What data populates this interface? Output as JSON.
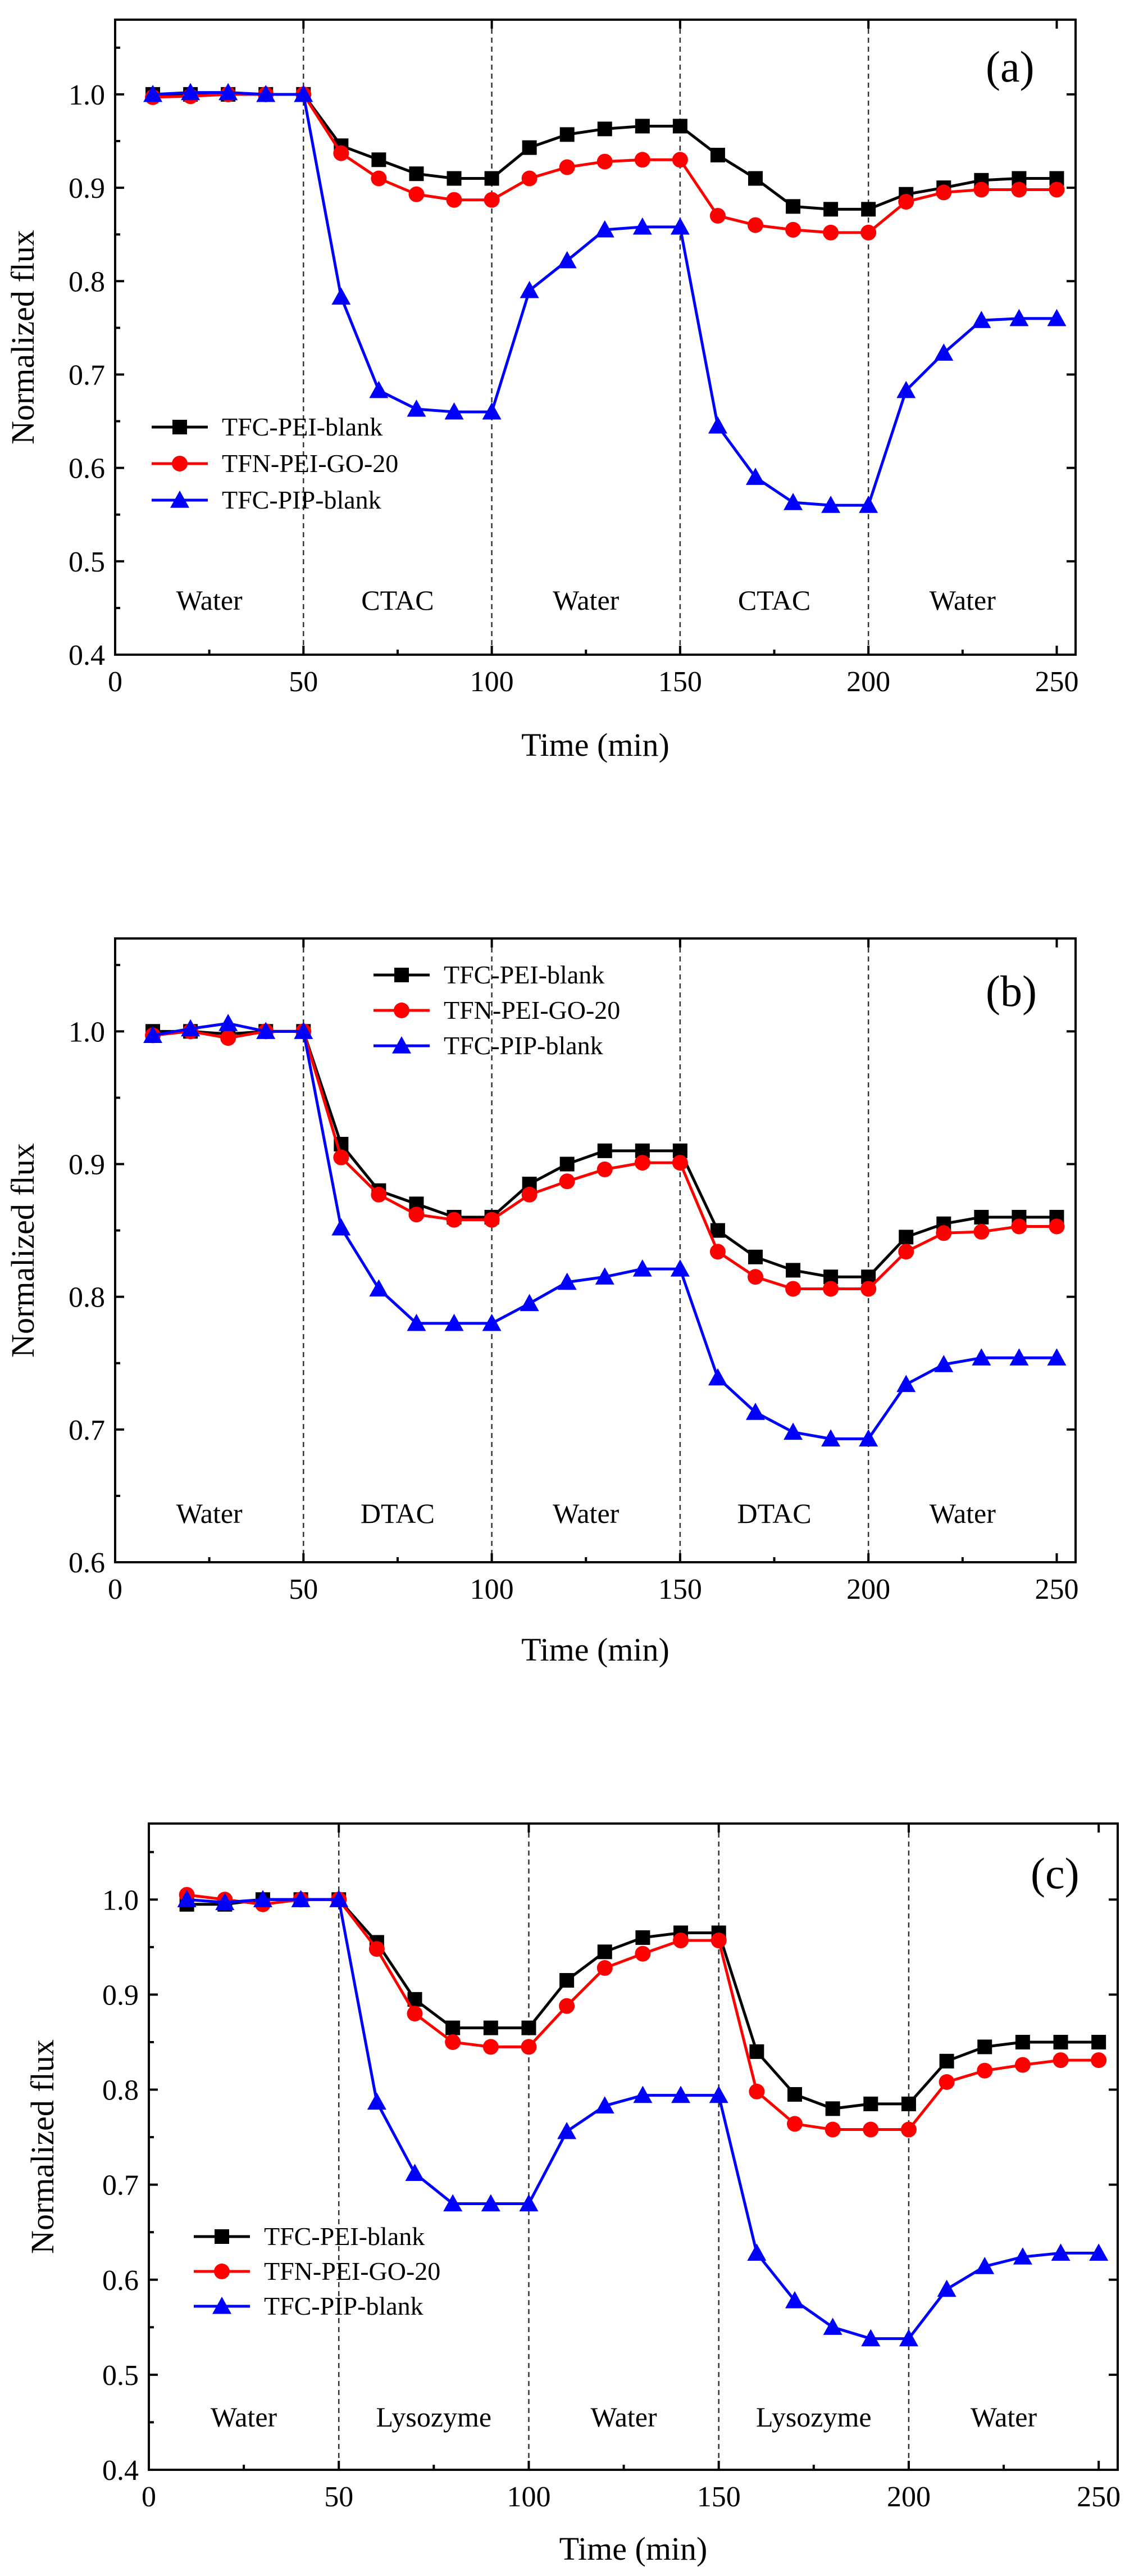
{
  "figure": {
    "colors": {
      "TFC-PEI-blank": "#000000",
      "TFN-PEI-GO-20": "#ff0000",
      "TFC-PIP-blank": "#0000ff"
    },
    "marker_shapes": {
      "TFC-PEI-blank": "square",
      "TFN-PEI-GO-20": "circle",
      "TFC-PIP-blank": "triangle"
    }
  },
  "chart_data": [
    {
      "type": "line",
      "panel": "(a)",
      "xlabel": "Time (min)",
      "ylabel": "Normalized flux",
      "xlim": [
        0,
        255
      ],
      "ylim": [
        0.4,
        1.08
      ],
      "xticks": [
        0,
        50,
        100,
        150,
        200,
        250
      ],
      "xtick_labels": [
        "0",
        "50",
        "100",
        "150",
        "200",
        "250"
      ],
      "yticks": [
        0.4,
        0.5,
        0.6,
        0.7,
        0.8,
        0.9,
        1.0
      ],
      "ytick_labels": [
        "0.4",
        "0.5",
        "0.6",
        "0.7",
        "0.8",
        "0.9",
        "1.0"
      ],
      "dividers": [
        50,
        100,
        150,
        200
      ],
      "regions": [
        {
          "label": "Water",
          "x": 25
        },
        {
          "label": "CTAC",
          "x": 75
        },
        {
          "label": "Water",
          "x": 125
        },
        {
          "label": "CTAC",
          "x": 175
        },
        {
          "label": "Water",
          "x": 225
        }
      ],
      "legend_position": "lower-left",
      "x": [
        10,
        20,
        30,
        40,
        50,
        60,
        70,
        80,
        90,
        100,
        110,
        120,
        130,
        140,
        150,
        160,
        170,
        180,
        190,
        200,
        210,
        220,
        230,
        240,
        250
      ],
      "series": [
        {
          "name": "TFC-PEI-blank",
          "values": [
            1.0,
            1.0,
            1.0,
            1.0,
            1.0,
            0.945,
            0.93,
            0.915,
            0.91,
            0.91,
            0.943,
            0.957,
            0.963,
            0.966,
            0.966,
            0.935,
            0.91,
            0.88,
            0.877,
            0.877,
            0.893,
            0.9,
            0.908,
            0.91,
            0.91
          ]
        },
        {
          "name": "TFN-PEI-GO-20",
          "values": [
            0.997,
            0.998,
            1.0,
            1.0,
            1.0,
            0.937,
            0.91,
            0.893,
            0.887,
            0.887,
            0.91,
            0.922,
            0.928,
            0.93,
            0.93,
            0.87,
            0.86,
            0.855,
            0.852,
            0.852,
            0.885,
            0.895,
            0.898,
            0.898,
            0.898
          ]
        },
        {
          "name": "TFC-PIP-blank",
          "values": [
            1.0,
            1.002,
            1.002,
            1.0,
            1.0,
            0.783,
            0.683,
            0.663,
            0.66,
            0.66,
            0.79,
            0.822,
            0.855,
            0.858,
            0.858,
            0.645,
            0.59,
            0.563,
            0.56,
            0.56,
            0.683,
            0.723,
            0.758,
            0.76,
            0.76
          ]
        }
      ]
    },
    {
      "type": "line",
      "panel": "(b)",
      "xlabel": "Time (min)",
      "ylabel": "Normalized flux",
      "xlim": [
        0,
        255
      ],
      "ylim": [
        0.6,
        1.07
      ],
      "xticks": [
        0,
        50,
        100,
        150,
        200,
        250
      ],
      "xtick_labels": [
        "0",
        "50",
        "100",
        "150",
        "200",
        "250"
      ],
      "yticks": [
        0.6,
        0.7,
        0.8,
        0.9,
        1.0
      ],
      "ytick_labels": [
        "0.6",
        "0.7",
        "0.8",
        "0.9",
        "1.0"
      ],
      "dividers": [
        50,
        100,
        150,
        200
      ],
      "regions": [
        {
          "label": "Water",
          "x": 25
        },
        {
          "label": "DTAC",
          "x": 75
        },
        {
          "label": "Water",
          "x": 125
        },
        {
          "label": "DTAC",
          "x": 175
        },
        {
          "label": "Water",
          "x": 225
        }
      ],
      "legend_position": "top-center",
      "x": [
        10,
        20,
        30,
        40,
        50,
        60,
        70,
        80,
        90,
        100,
        110,
        120,
        130,
        140,
        150,
        160,
        170,
        180,
        190,
        200,
        210,
        220,
        230,
        240,
        250
      ],
      "series": [
        {
          "name": "TFC-PEI-blank",
          "values": [
            1.0,
            1.0,
            0.998,
            1.0,
            1.0,
            0.915,
            0.88,
            0.87,
            0.86,
            0.86,
            0.885,
            0.9,
            0.91,
            0.91,
            0.91,
            0.85,
            0.83,
            0.82,
            0.815,
            0.815,
            0.845,
            0.855,
            0.86,
            0.86,
            0.86
          ]
        },
        {
          "name": "TFN-PEI-GO-20",
          "values": [
            0.997,
            1.0,
            0.995,
            1.0,
            1.0,
            0.905,
            0.877,
            0.862,
            0.858,
            0.858,
            0.877,
            0.887,
            0.896,
            0.901,
            0.901,
            0.834,
            0.815,
            0.806,
            0.806,
            0.806,
            0.834,
            0.848,
            0.849,
            0.853,
            0.853
          ]
        },
        {
          "name": "TFC-PIP-blank",
          "values": [
            0.997,
            1.002,
            1.006,
            1.0,
            1.0,
            0.852,
            0.806,
            0.78,
            0.78,
            0.78,
            0.795,
            0.811,
            0.815,
            0.821,
            0.821,
            0.739,
            0.713,
            0.698,
            0.693,
            0.693,
            0.734,
            0.749,
            0.754,
            0.754,
            0.754
          ]
        }
      ]
    },
    {
      "type": "line",
      "panel": "(c)",
      "xlabel": "Time (min)",
      "ylabel": "Normalized flux",
      "xlim": [
        0,
        255
      ],
      "ylim": [
        0.4,
        1.08
      ],
      "xticks": [
        0,
        50,
        100,
        150,
        200,
        250
      ],
      "xtick_labels": [
        "0",
        "50",
        "100",
        "150",
        "200",
        "250"
      ],
      "yticks": [
        0.4,
        0.5,
        0.6,
        0.7,
        0.8,
        0.9,
        1.0
      ],
      "ytick_labels": [
        "0.4",
        "0.5",
        "0.6",
        "0.7",
        "0.8",
        "0.9",
        "1.0"
      ],
      "dividers": [
        50,
        100,
        150,
        200
      ],
      "regions": [
        {
          "label": "Water",
          "x": 25
        },
        {
          "label": "Lysozyme",
          "x": 75
        },
        {
          "label": "Water",
          "x": 125
        },
        {
          "label": "Lysozyme",
          "x": 175
        },
        {
          "label": "Water",
          "x": 225
        }
      ],
      "legend_position": "lower-left",
      "x": [
        10,
        20,
        30,
        40,
        50,
        60,
        70,
        80,
        90,
        100,
        110,
        120,
        130,
        140,
        150,
        160,
        170,
        180,
        190,
        200,
        210,
        220,
        230,
        240,
        250
      ],
      "series": [
        {
          "name": "TFC-PEI-blank",
          "values": [
            0.995,
            0.995,
            1.0,
            1.0,
            1.0,
            0.955,
            0.895,
            0.865,
            0.865,
            0.865,
            0.915,
            0.945,
            0.96,
            0.965,
            0.965,
            0.84,
            0.795,
            0.78,
            0.785,
            0.785,
            0.83,
            0.845,
            0.85,
            0.85,
            0.85
          ]
        },
        {
          "name": "TFN-PEI-GO-20",
          "values": [
            1.005,
            1.0,
            0.995,
            1.0,
            1.0,
            0.948,
            0.88,
            0.85,
            0.845,
            0.845,
            0.888,
            0.928,
            0.943,
            0.957,
            0.957,
            0.798,
            0.764,
            0.758,
            0.758,
            0.758,
            0.808,
            0.82,
            0.826,
            0.831,
            0.831
          ]
        },
        {
          "name": "TFC-PIP-blank",
          "values": [
            1.0,
            0.997,
            1.0,
            1.0,
            1.0,
            0.787,
            0.712,
            0.68,
            0.68,
            0.68,
            0.756,
            0.783,
            0.794,
            0.794,
            0.794,
            0.628,
            0.578,
            0.55,
            0.538,
            0.538,
            0.59,
            0.614,
            0.624,
            0.628,
            0.628
          ]
        }
      ]
    }
  ]
}
